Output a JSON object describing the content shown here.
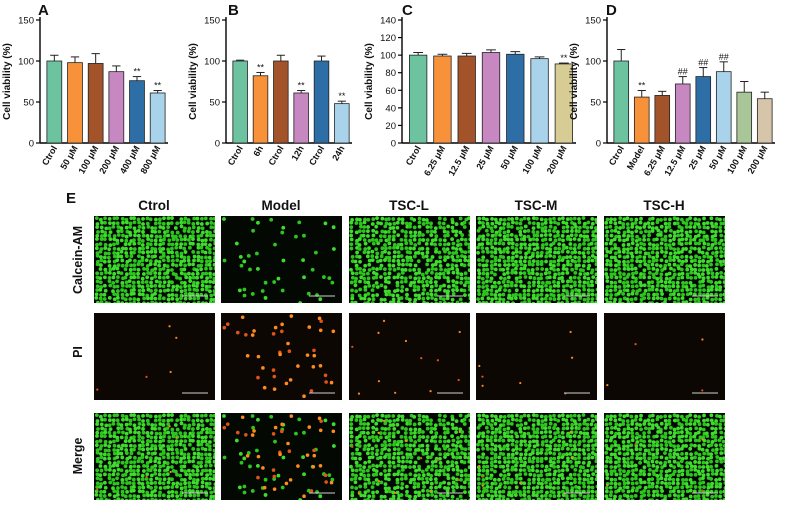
{
  "panel_labels": {
    "a": "A",
    "b": "B",
    "c": "C",
    "d": "D",
    "e": "E"
  },
  "chart_data": [
    {
      "id": "A",
      "type": "bar",
      "ylabel": "Cell viability (%)",
      "ylim": [
        0,
        150
      ],
      "yticks": [
        0,
        50,
        100,
        150
      ],
      "categories": [
        "Ctrol",
        "50 μM",
        "100 μM",
        "200 μM",
        "400 μM",
        "800 μM"
      ],
      "values": [
        100,
        98,
        97,
        87,
        76,
        61
      ],
      "errors": [
        7,
        7,
        12,
        7,
        5,
        3
      ],
      "colors": [
        "#6dc2a0",
        "#f7923a",
        "#a3532a",
        "#c788c2",
        "#2e6ea7",
        "#a8d3ea"
      ],
      "annotations": [
        "",
        "",
        "",
        "",
        "**",
        "**"
      ]
    },
    {
      "id": "B",
      "type": "bar",
      "ylabel": "Cell viability (%)",
      "ylim": [
        0,
        150
      ],
      "yticks": [
        0,
        50,
        100,
        150
      ],
      "categories": [
        "Ctrol",
        "6h",
        "Ctrol",
        "12h",
        "Ctrol",
        "24h"
      ],
      "values": [
        100,
        82,
        100,
        61,
        100,
        48
      ],
      "errors": [
        1,
        4,
        7,
        3,
        6,
        3
      ],
      "colors": [
        "#6dc2a0",
        "#f7923a",
        "#a3532a",
        "#c788c2",
        "#2e6ea7",
        "#a8d3ea"
      ],
      "annotations": [
        "",
        "**",
        "",
        "**",
        "",
        "**"
      ]
    },
    {
      "id": "C",
      "type": "bar",
      "ylabel": "Cell viability (%)",
      "ylim": [
        0,
        140
      ],
      "yticks": [
        0,
        20,
        40,
        60,
        80,
        100,
        120,
        140
      ],
      "categories": [
        "Ctrol",
        "6.25 μM",
        "12.5 μM",
        "25 μM",
        "50 μM",
        "100 μM",
        "200 μM"
      ],
      "values": [
        100,
        99,
        99,
        103,
        101,
        96,
        90
      ],
      "errors": [
        3,
        2,
        3,
        3,
        3,
        2,
        1
      ],
      "colors": [
        "#6dc2a0",
        "#f7923a",
        "#a3532a",
        "#c788c2",
        "#2e6ea7",
        "#a8d3ea",
        "#d8cc95"
      ],
      "annotations": [
        "",
        "",
        "",
        "",
        "",
        "",
        "**"
      ]
    },
    {
      "id": "D",
      "type": "bar",
      "ylabel": "Cell viability (%)",
      "ylim": [
        0,
        150
      ],
      "yticks": [
        0,
        50,
        100,
        150
      ],
      "categories": [
        "Ctrol",
        "Model",
        "6.25 μM",
        "12.5 μM",
        "25 μM",
        "50 μM",
        "100 μM",
        "200 μM"
      ],
      "values": [
        100,
        56,
        58,
        72,
        81,
        87,
        62,
        54
      ],
      "errors": [
        14,
        8,
        5,
        9,
        11,
        12,
        13,
        8
      ],
      "colors": [
        "#6dc2a0",
        "#f7923a",
        "#a3532a",
        "#c788c2",
        "#2e6ea7",
        "#a8d3ea",
        "#a8c697",
        "#d7c5a9"
      ],
      "annotations": [
        "",
        "**",
        "",
        "##",
        "##",
        "##",
        "",
        ""
      ]
    }
  ],
  "panel_e": {
    "columns": [
      "Ctrol",
      "Model",
      "TSC-L",
      "TSC-M",
      "TSC-H"
    ],
    "rows": [
      "Calcein-AM",
      "PI",
      "Merge"
    ]
  }
}
